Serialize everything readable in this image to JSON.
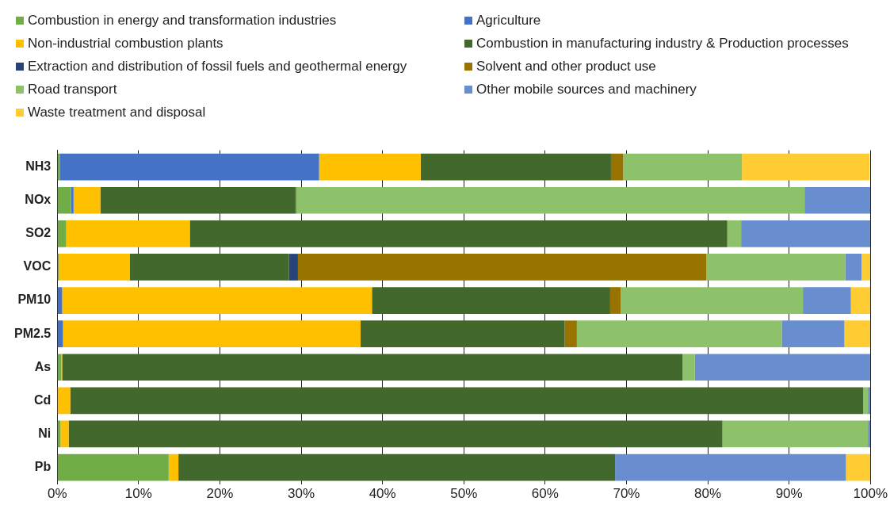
{
  "chart_data": {
    "type": "bar",
    "orientation": "horizontal",
    "stacked": true,
    "categories": [
      "NH3",
      "NOx",
      "SO2",
      "VOC",
      "PM10",
      "PM2.5",
      "As",
      "Cd",
      "Ni",
      "Pb"
    ],
    "series": [
      {
        "name": "Combustion in energy and transformation industries",
        "color": "#70ad47",
        "values": [
          0.3,
          1.7,
          1.1,
          0.2,
          0,
          0,
          0.5,
          0,
          0.4,
          13.7
        ]
      },
      {
        "name": "Agriculture",
        "color": "#4472c4",
        "values": [
          31.9,
          0.3,
          0,
          0,
          0.6,
          0.7,
          0,
          0,
          0,
          0
        ]
      },
      {
        "name": "Non-industrial combustion plants",
        "color": "#ffc000",
        "values": [
          12.5,
          3.3,
          15.2,
          8.7,
          38.1,
          36.6,
          0.1,
          1.6,
          1.0,
          1.2
        ]
      },
      {
        "name": "Combustion in manufacturing industry & Production processes",
        "color": "#43682b",
        "values": [
          23.4,
          24.0,
          66.1,
          19.6,
          29.3,
          25.1,
          76.3,
          97.5,
          80.4,
          53.7
        ]
      },
      {
        "name": "Extraction and distribution of fossil fuels and geothermal energy",
        "color": "#264478",
        "values": [
          0,
          0,
          0,
          1.1,
          0,
          0,
          0,
          0,
          0,
          0
        ]
      },
      {
        "name": "Solvent and other product use",
        "color": "#997300",
        "values": [
          1.5,
          0.1,
          0,
          50.2,
          1.3,
          1.5,
          0,
          0,
          0,
          0
        ]
      },
      {
        "name": "Road transport",
        "color": "#8dc16a",
        "values": [
          14.6,
          62.5,
          1.7,
          17.1,
          22.4,
          25.2,
          1.5,
          0.6,
          17.9,
          0
        ]
      },
      {
        "name": "Other mobile sources and machinery",
        "color": "#698ed0",
        "values": [
          0,
          8.1,
          15.9,
          2.0,
          5.9,
          7.7,
          21.6,
          0.3,
          0.3,
          28.4
        ]
      },
      {
        "name": "Waste treatment and disposal",
        "color": "#ffcd33",
        "values": [
          15.7,
          0,
          0,
          1.1,
          2.4,
          3.2,
          0,
          0,
          0,
          3.0
        ]
      }
    ],
    "xlim": [
      0,
      100
    ],
    "xticks": [
      {
        "value": 0,
        "label": "0%"
      },
      {
        "value": 10,
        "label": "10%"
      },
      {
        "value": 20,
        "label": "20%"
      },
      {
        "value": 30,
        "label": "30%"
      },
      {
        "value": 40,
        "label": "40%"
      },
      {
        "value": 50,
        "label": "50%"
      },
      {
        "value": 60,
        "label": "60%"
      },
      {
        "value": 70,
        "label": "70%"
      },
      {
        "value": 80,
        "label": "80%"
      },
      {
        "value": 90,
        "label": "90%"
      },
      {
        "value": 100,
        "label": "100%"
      }
    ],
    "grid": "x",
    "legend": "top"
  }
}
